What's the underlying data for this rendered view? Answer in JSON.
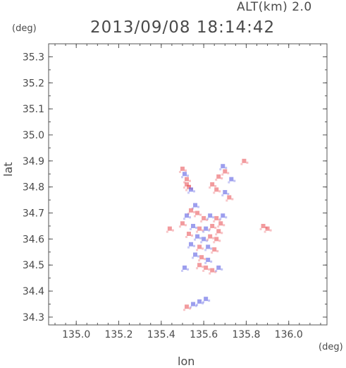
{
  "header": {
    "altitude_label": "ALT(km)  2.0",
    "datetime": "2013/09/08 18:14:42",
    "y_unit": "(deg)",
    "x_unit": "(deg)"
  },
  "chart_data": {
    "type": "heatmap",
    "title": "2013/09/08 18:14:42",
    "subtitle": "ALT(km)  2.0",
    "xlabel": "lon",
    "ylabel": "lat",
    "xlim": [
      134.87,
      136.18
    ],
    "ylim": [
      34.27,
      35.35
    ],
    "x_ticks": [
      "135.0",
      "135.2",
      "135.4",
      "135.6",
      "135.8",
      "136.0"
    ],
    "y_ticks": [
      "34.3",
      "34.4",
      "34.5",
      "34.6",
      "34.7",
      "34.8",
      "34.9",
      "35.0",
      "35.1",
      "35.2",
      "35.3"
    ],
    "grid": false,
    "colors": {
      "positive": "#e8484f",
      "negative": "#4b4fe0",
      "frame": "#555555"
    },
    "points": [
      {
        "lon": 135.5,
        "lat": 34.87,
        "v": 1
      },
      {
        "lon": 135.51,
        "lat": 34.85,
        "v": -1
      },
      {
        "lon": 135.52,
        "lat": 34.83,
        "v": 1
      },
      {
        "lon": 135.53,
        "lat": 34.8,
        "v": 1
      },
      {
        "lon": 135.54,
        "lat": 34.79,
        "v": -1
      },
      {
        "lon": 135.52,
        "lat": 34.81,
        "v": 1
      },
      {
        "lon": 135.69,
        "lat": 34.88,
        "v": -1
      },
      {
        "lon": 135.7,
        "lat": 34.86,
        "v": 1
      },
      {
        "lon": 135.67,
        "lat": 34.84,
        "v": 1
      },
      {
        "lon": 135.73,
        "lat": 34.83,
        "v": -1
      },
      {
        "lon": 135.64,
        "lat": 34.81,
        "v": 1
      },
      {
        "lon": 135.66,
        "lat": 34.79,
        "v": 1
      },
      {
        "lon": 135.7,
        "lat": 34.78,
        "v": -1
      },
      {
        "lon": 135.72,
        "lat": 34.76,
        "v": 1
      },
      {
        "lon": 135.79,
        "lat": 34.9,
        "v": 1
      },
      {
        "lon": 135.56,
        "lat": 34.73,
        "v": -1
      },
      {
        "lon": 135.54,
        "lat": 34.71,
        "v": 1
      },
      {
        "lon": 135.57,
        "lat": 34.7,
        "v": 1
      },
      {
        "lon": 135.52,
        "lat": 34.69,
        "v": -1
      },
      {
        "lon": 135.6,
        "lat": 34.68,
        "v": 1
      },
      {
        "lon": 135.63,
        "lat": 34.69,
        "v": -1
      },
      {
        "lon": 135.66,
        "lat": 34.68,
        "v": 1
      },
      {
        "lon": 135.69,
        "lat": 34.69,
        "v": -1
      },
      {
        "lon": 135.68,
        "lat": 34.66,
        "v": 1
      },
      {
        "lon": 135.5,
        "lat": 34.66,
        "v": 1
      },
      {
        "lon": 135.55,
        "lat": 34.65,
        "v": -1
      },
      {
        "lon": 135.58,
        "lat": 34.64,
        "v": 1
      },
      {
        "lon": 135.61,
        "lat": 34.64,
        "v": -1
      },
      {
        "lon": 135.64,
        "lat": 34.65,
        "v": 1
      },
      {
        "lon": 135.67,
        "lat": 34.63,
        "v": 1
      },
      {
        "lon": 135.53,
        "lat": 34.62,
        "v": 1
      },
      {
        "lon": 135.57,
        "lat": 34.61,
        "v": -1
      },
      {
        "lon": 135.6,
        "lat": 34.6,
        "v": -1
      },
      {
        "lon": 135.63,
        "lat": 34.61,
        "v": 1
      },
      {
        "lon": 135.66,
        "lat": 34.6,
        "v": 1
      },
      {
        "lon": 135.54,
        "lat": 34.58,
        "v": -1
      },
      {
        "lon": 135.58,
        "lat": 34.57,
        "v": 1
      },
      {
        "lon": 135.62,
        "lat": 34.57,
        "v": -1
      },
      {
        "lon": 135.65,
        "lat": 34.56,
        "v": 1
      },
      {
        "lon": 135.56,
        "lat": 34.54,
        "v": -1
      },
      {
        "lon": 135.59,
        "lat": 34.53,
        "v": 1
      },
      {
        "lon": 135.62,
        "lat": 34.52,
        "v": -1
      },
      {
        "lon": 135.58,
        "lat": 34.5,
        "v": 1
      },
      {
        "lon": 135.61,
        "lat": 34.49,
        "v": 1
      },
      {
        "lon": 135.64,
        "lat": 34.48,
        "v": 1
      },
      {
        "lon": 135.67,
        "lat": 34.49,
        "v": -1
      },
      {
        "lon": 135.51,
        "lat": 34.49,
        "v": -1
      },
      {
        "lon": 135.88,
        "lat": 34.65,
        "v": 1
      },
      {
        "lon": 135.9,
        "lat": 34.64,
        "v": 1
      },
      {
        "lon": 135.44,
        "lat": 34.64,
        "v": 1
      },
      {
        "lon": 135.61,
        "lat": 34.37,
        "v": -1
      },
      {
        "lon": 135.58,
        "lat": 34.36,
        "v": -1
      },
      {
        "lon": 135.55,
        "lat": 34.35,
        "v": -1
      },
      {
        "lon": 135.52,
        "lat": 34.34,
        "v": 1
      }
    ]
  }
}
